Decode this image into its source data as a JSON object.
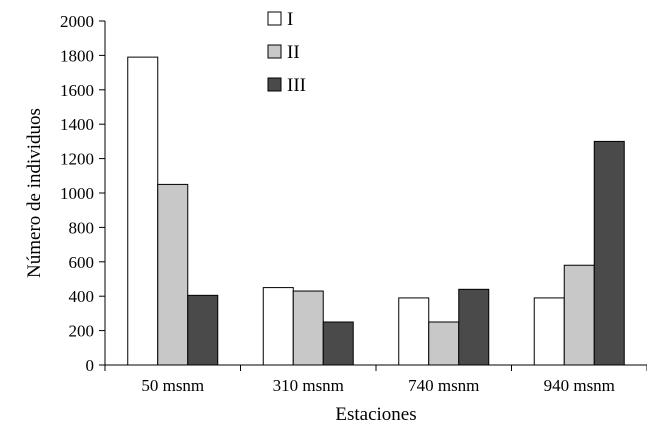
{
  "chart_data": {
    "type": "bar",
    "categories": [
      "50 msnm",
      "310 msnm",
      "740 msnm",
      "940 msnm"
    ],
    "series": [
      {
        "name": "I",
        "color": "#ffffff",
        "values": [
          1790,
          450,
          390,
          390
        ]
      },
      {
        "name": "II",
        "color": "#c8c8c8",
        "values": [
          1050,
          430,
          250,
          580
        ]
      },
      {
        "name": "III",
        "color": "#4a4a4a",
        "values": [
          405,
          250,
          440,
          1300
        ]
      }
    ],
    "xlabel": "Estaciones",
    "ylabel": "Número de individuos",
    "ylim": [
      0,
      2000
    ],
    "yticks": [
      0,
      200,
      400,
      600,
      800,
      1000,
      1200,
      1400,
      1600,
      1800,
      2000
    ],
    "legend_position": "top-center",
    "grid": false
  }
}
